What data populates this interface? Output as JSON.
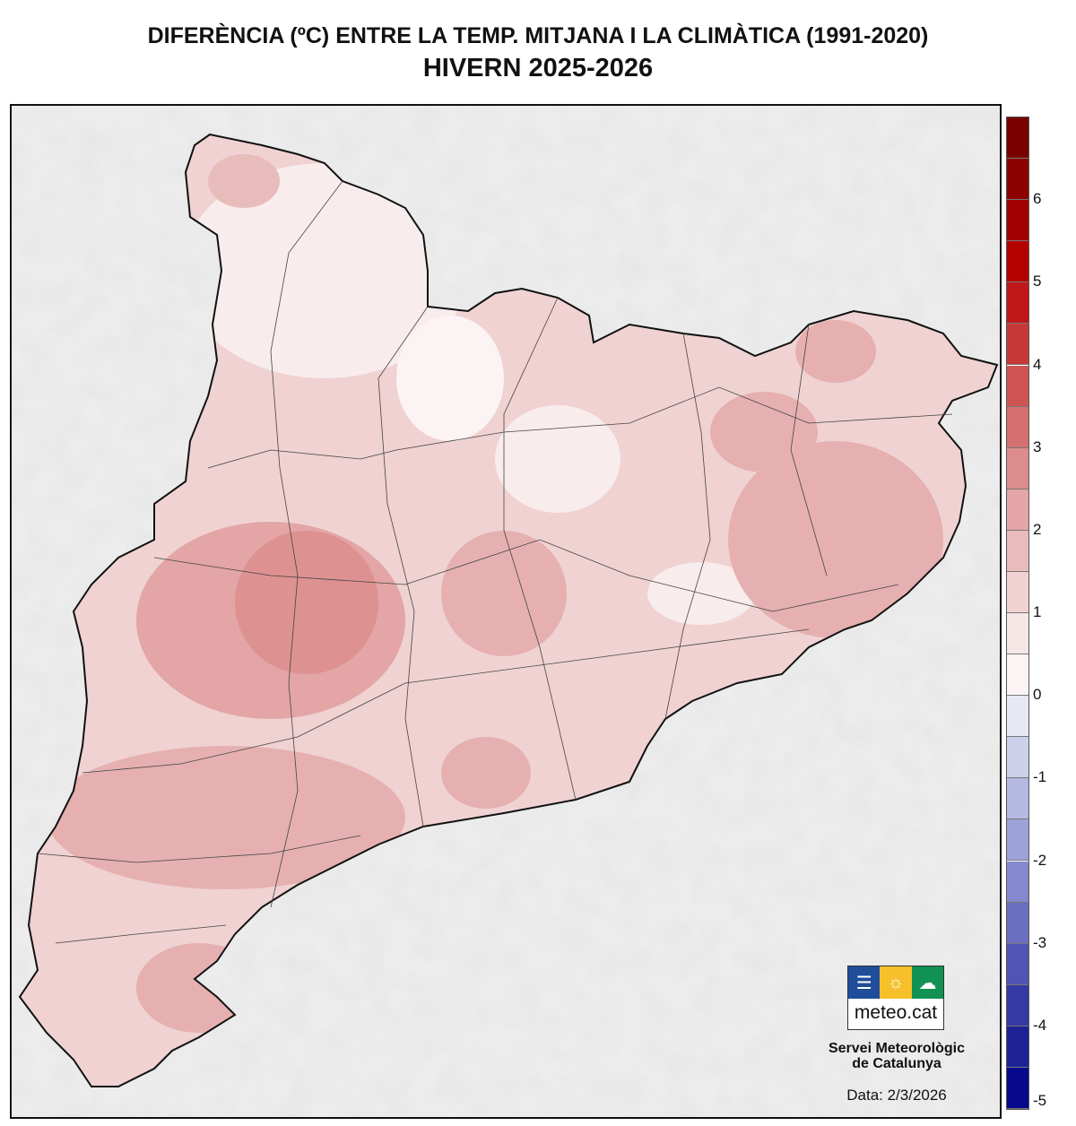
{
  "title": "DIFERÈNCIA (ºC) ENTRE LA TEMP. MITJANA I LA CLIMÀTICA (1991-2020)",
  "subtitle": "HIVERN 2025-2026",
  "legend": {
    "range": [
      -5,
      7
    ],
    "step": 0.5,
    "tick_labels": [
      "6",
      "5",
      "4",
      "3",
      "2",
      "1",
      "0",
      "-1",
      "-2",
      "-3",
      "-4",
      "-5"
    ],
    "colors_top_to_bottom": [
      "#7a0000",
      "#8c0000",
      "#a00000",
      "#b50000",
      "#c01818",
      "#c83838",
      "#cf5555",
      "#d57070",
      "#dc8c8c",
      "#e3a5a5",
      "#e9bcbc",
      "#f0d2d2",
      "#f6e6e6",
      "#fcf4f4",
      "#e6e8f3",
      "#cdd0ea",
      "#b5b9e2",
      "#9da2d8",
      "#8489cd",
      "#6b6fc1",
      "#5054b3",
      "#3539a3",
      "#1d2196",
      "#060a8a"
    ]
  },
  "logo": {
    "text": "meteo.cat",
    "colors": [
      "#1f4d9a",
      "#f5c02a",
      "#119152"
    ]
  },
  "organization": [
    "Servei Meteorològic",
    "de Catalunya"
  ],
  "date": "Data: 2/3/2026"
}
